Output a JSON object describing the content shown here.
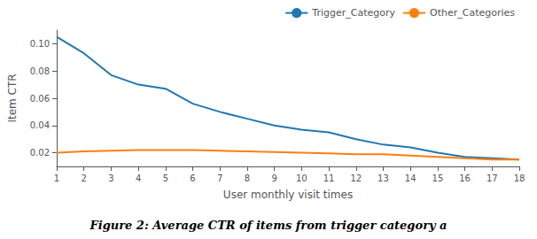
{
  "chart_data": {
    "type": "line",
    "title": "Figure 2: Average CTR of items from trigger category a",
    "xlabel": "User monthly visit times",
    "ylabel": "Item CTR",
    "x": [
      1,
      2,
      3,
      4,
      5,
      6,
      7,
      8,
      9,
      10,
      11,
      12,
      13,
      14,
      15,
      16,
      17,
      18
    ],
    "series": [
      {
        "name": "Trigger_Category",
        "color": "#1f77b4",
        "values": [
          0.105,
          0.093,
          0.077,
          0.07,
          0.067,
          0.056,
          0.05,
          0.045,
          0.04,
          0.037,
          0.035,
          0.03,
          0.026,
          0.024,
          0.02,
          0.017,
          0.016,
          0.015
        ]
      },
      {
        "name": "Other_Categories",
        "color": "#ff7f0e",
        "values": [
          0.02,
          0.021,
          0.0215,
          0.022,
          0.022,
          0.022,
          0.0215,
          0.021,
          0.0205,
          0.02,
          0.0195,
          0.019,
          0.019,
          0.018,
          0.017,
          0.016,
          0.015,
          0.015
        ]
      }
    ],
    "xlim": [
      1,
      18
    ],
    "xticks": [
      1,
      2,
      3,
      4,
      5,
      6,
      7,
      8,
      9,
      10,
      11,
      12,
      13,
      14,
      15,
      16,
      17,
      18
    ],
    "ylim": [
      0.01,
      0.11
    ],
    "yticks": [
      0.02,
      0.04,
      0.06,
      0.08,
      {
        "value": 0.1,
        "label": "0.10"
      }
    ],
    "legend": "upper right",
    "grid": false
  }
}
